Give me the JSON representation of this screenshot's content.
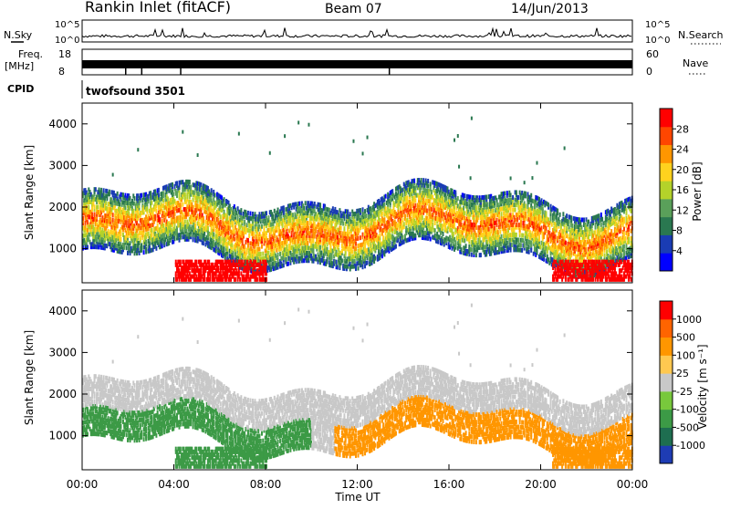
{
  "header": {
    "station": "Rankin Inlet (fitACF)",
    "beam": "Beam 07",
    "date": "14/Jun/2013"
  },
  "noise_panel": {
    "left_label": "N.Sky",
    "right_label": "N.Search",
    "left_ticks": [
      "10^5",
      "10^0"
    ],
    "right_ticks": [
      "10^5",
      "10^0"
    ]
  },
  "freq_panel": {
    "left_label_1": "Freq.",
    "left_label_2": "[MHz]",
    "right_label": "Nave",
    "left_ticks": [
      "18",
      "8"
    ],
    "right_ticks": [
      "60",
      "0"
    ]
  },
  "cpid": {
    "label": "CPID",
    "program": "twofsound 3501"
  },
  "chart_data": [
    {
      "type": "heatmap",
      "title": "",
      "xlabel": "Time UT",
      "ylabel": "Slant Range [km]",
      "xlim_hours": [
        0,
        24
      ],
      "ylim_km": [
        180,
        4500
      ],
      "x_ticks": [
        "00:00",
        "04:00",
        "08:00",
        "12:00",
        "16:00",
        "20:00",
        "00:00"
      ],
      "y_ticks": [
        "1000",
        "2000",
        "3000",
        "4000"
      ],
      "colorbar": {
        "label": "Power [dB]",
        "range": [
          0,
          30
        ],
        "ticks": [
          "28",
          "24",
          "20",
          "16",
          "12",
          "8",
          "4"
        ],
        "colors": [
          "#0000ff",
          "#1a3cb4",
          "#2a7850",
          "#5aa05a",
          "#b4d22a",
          "#ffd21e",
          "#ff9600",
          "#ff4600",
          "#ff0000"
        ]
      }
    },
    {
      "type": "heatmap",
      "title": "",
      "xlabel": "Time UT",
      "ylabel": "Slant Range [km]",
      "xlim_hours": [
        0,
        24
      ],
      "ylim_km": [
        180,
        4500
      ],
      "x_ticks": [
        "00:00",
        "04:00",
        "08:00",
        "12:00",
        "16:00",
        "20:00",
        "00:00"
      ],
      "y_ticks": [
        "1000",
        "2000",
        "3000",
        "4000"
      ],
      "colorbar": {
        "label": "Velocity [m s⁻¹]",
        "ticks": [
          "1000",
          "500",
          "100",
          "25",
          "-25",
          "-100",
          "-500",
          "-1000"
        ],
        "colors": [
          "#1e3cb4",
          "#1e6e50",
          "#3c9a46",
          "#78c83c",
          "#c8c8c8",
          "#ffc850",
          "#ff9600",
          "#ff6400",
          "#ff0000"
        ]
      }
    }
  ],
  "colors": {
    "gray_scatter": "#c8c8c8",
    "green_scatter": "#3c8c46",
    "orange_scatter": "#ffa01e"
  }
}
